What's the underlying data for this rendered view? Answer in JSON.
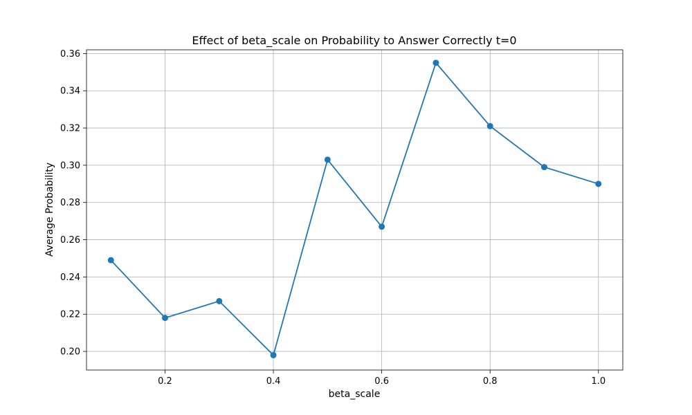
{
  "chart_data": {
    "type": "line",
    "title": "Effect of beta_scale on Probability to Answer Correctly t=0",
    "xlabel": "beta_scale",
    "ylabel": "Average Probability",
    "x": [
      0.1,
      0.2,
      0.3,
      0.4,
      0.5,
      0.6,
      0.7,
      0.8,
      0.9,
      1.0
    ],
    "series": [
      {
        "values": [
          0.249,
          0.218,
          0.227,
          0.198,
          0.303,
          0.267,
          0.355,
          0.321,
          0.299,
          0.29
        ],
        "color": "#1f77b4",
        "marker": "circle"
      }
    ],
    "xlim": [
      0.055,
      1.045
    ],
    "ylim": [
      0.19,
      0.362
    ],
    "xticks": [
      0.2,
      0.4,
      0.6,
      0.8,
      1.0
    ],
    "xtick_labels": [
      "0.2",
      "0.4",
      "0.6",
      "0.8",
      "1.0"
    ],
    "yticks": [
      0.2,
      0.22,
      0.24,
      0.26,
      0.28,
      0.3,
      0.32,
      0.34,
      0.36
    ],
    "ytick_labels": [
      "0.20",
      "0.22",
      "0.24",
      "0.26",
      "0.28",
      "0.30",
      "0.32",
      "0.34",
      "0.36"
    ],
    "grid": true,
    "legend": "none"
  }
}
